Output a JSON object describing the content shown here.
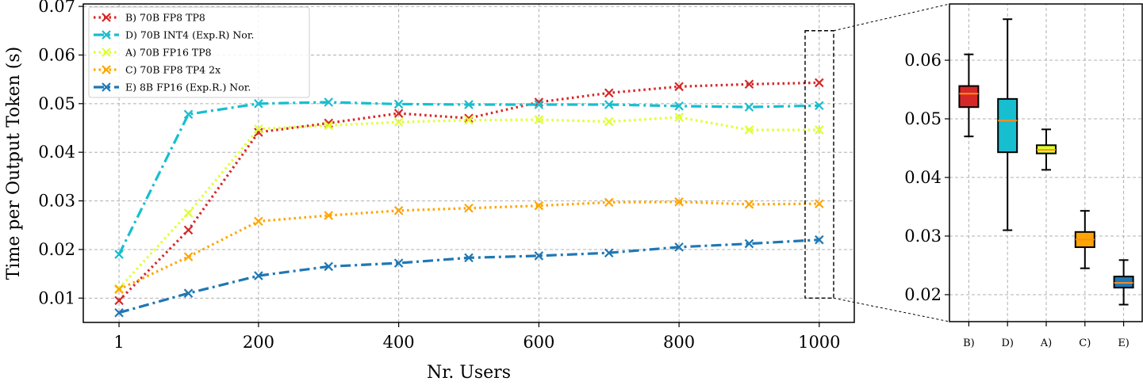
{
  "chart_data": [
    {
      "type": "line",
      "xlabel": "Nr. Users",
      "ylabel": "Time per Output Token (s)",
      "xlim": [
        -50,
        1050
      ],
      "ylim": [
        0.005,
        0.0705
      ],
      "xticks": [
        "1",
        "200",
        "400",
        "600",
        "800",
        "1000"
      ],
      "yticks": [
        "0.01",
        "0.02",
        "0.03",
        "0.04",
        "0.05",
        "0.06",
        "0.07"
      ],
      "grid": true,
      "legend_position": "top-left",
      "x": [
        1,
        100,
        200,
        300,
        400,
        500,
        600,
        700,
        800,
        900,
        1000
      ],
      "series": [
        {
          "name": "B) 70B FP8 TP8",
          "color": "#d62728",
          "style": "dotted",
          "values": [
            0.0095,
            0.024,
            0.0441,
            0.046,
            0.048,
            0.047,
            0.0503,
            0.0522,
            0.0535,
            0.054,
            0.0543
          ]
        },
        {
          "name": "D) 70B INT4 (Exp.R) Nor.",
          "color": "#17becf",
          "style": "dashdot",
          "values": [
            0.019,
            0.0478,
            0.05,
            0.0503,
            0.0499,
            0.0498,
            0.0498,
            0.0498,
            0.0495,
            0.0493,
            0.0496
          ]
        },
        {
          "name": "A) 70B FP16 TP8",
          "color": "#e0ff30",
          "style": "dotted",
          "values": [
            0.012,
            0.0275,
            0.0448,
            0.0455,
            0.0462,
            0.0466,
            0.0467,
            0.0463,
            0.0472,
            0.0446,
            0.0446
          ]
        },
        {
          "name": "C) 70B FP8 TP4 2x",
          "color": "#ffa500",
          "style": "dotted",
          "values": [
            0.0118,
            0.0185,
            0.0258,
            0.027,
            0.028,
            0.0285,
            0.029,
            0.0297,
            0.0298,
            0.0293,
            0.0294
          ]
        },
        {
          "name": "E) 8B FP16 (Exp.R.) Nor.",
          "color": "#1f77b4",
          "style": "dashdot",
          "values": [
            0.007,
            0.011,
            0.0146,
            0.0165,
            0.0172,
            0.0183,
            0.0187,
            0.0193,
            0.0205,
            0.0212,
            0.022
          ]
        }
      ]
    },
    {
      "type": "box",
      "ylim": [
        0.0154,
        0.0696
      ],
      "yticks": [
        "0.02",
        "0.03",
        "0.04",
        "0.05",
        "0.06"
      ],
      "grid": true,
      "categories": [
        "B)",
        "D)",
        "A)",
        "C)",
        "E)"
      ],
      "boxes": [
        {
          "category": "B)",
          "color": "#d62728",
          "whisker_low": 0.047,
          "q1": 0.052,
          "median": 0.0543,
          "q3": 0.0556,
          "whisker_high": 0.061
        },
        {
          "category": "D)",
          "color": "#17becf",
          "whisker_low": 0.031,
          "q1": 0.0443,
          "median": 0.0497,
          "q3": 0.0534,
          "whisker_high": 0.067
        },
        {
          "category": "A)",
          "color": "#e0ff30",
          "whisker_low": 0.0413,
          "q1": 0.0441,
          "median": 0.0447,
          "q3": 0.0455,
          "whisker_high": 0.0482
        },
        {
          "category": "C)",
          "color": "#ffa500",
          "whisker_low": 0.0245,
          "q1": 0.0281,
          "median": 0.0294,
          "q3": 0.0307,
          "whisker_high": 0.0343
        },
        {
          "category": "E)",
          "color": "#1f77b4",
          "whisker_low": 0.0183,
          "q1": 0.0212,
          "median": 0.022,
          "q3": 0.0231,
          "whisker_high": 0.0259
        }
      ]
    }
  ]
}
